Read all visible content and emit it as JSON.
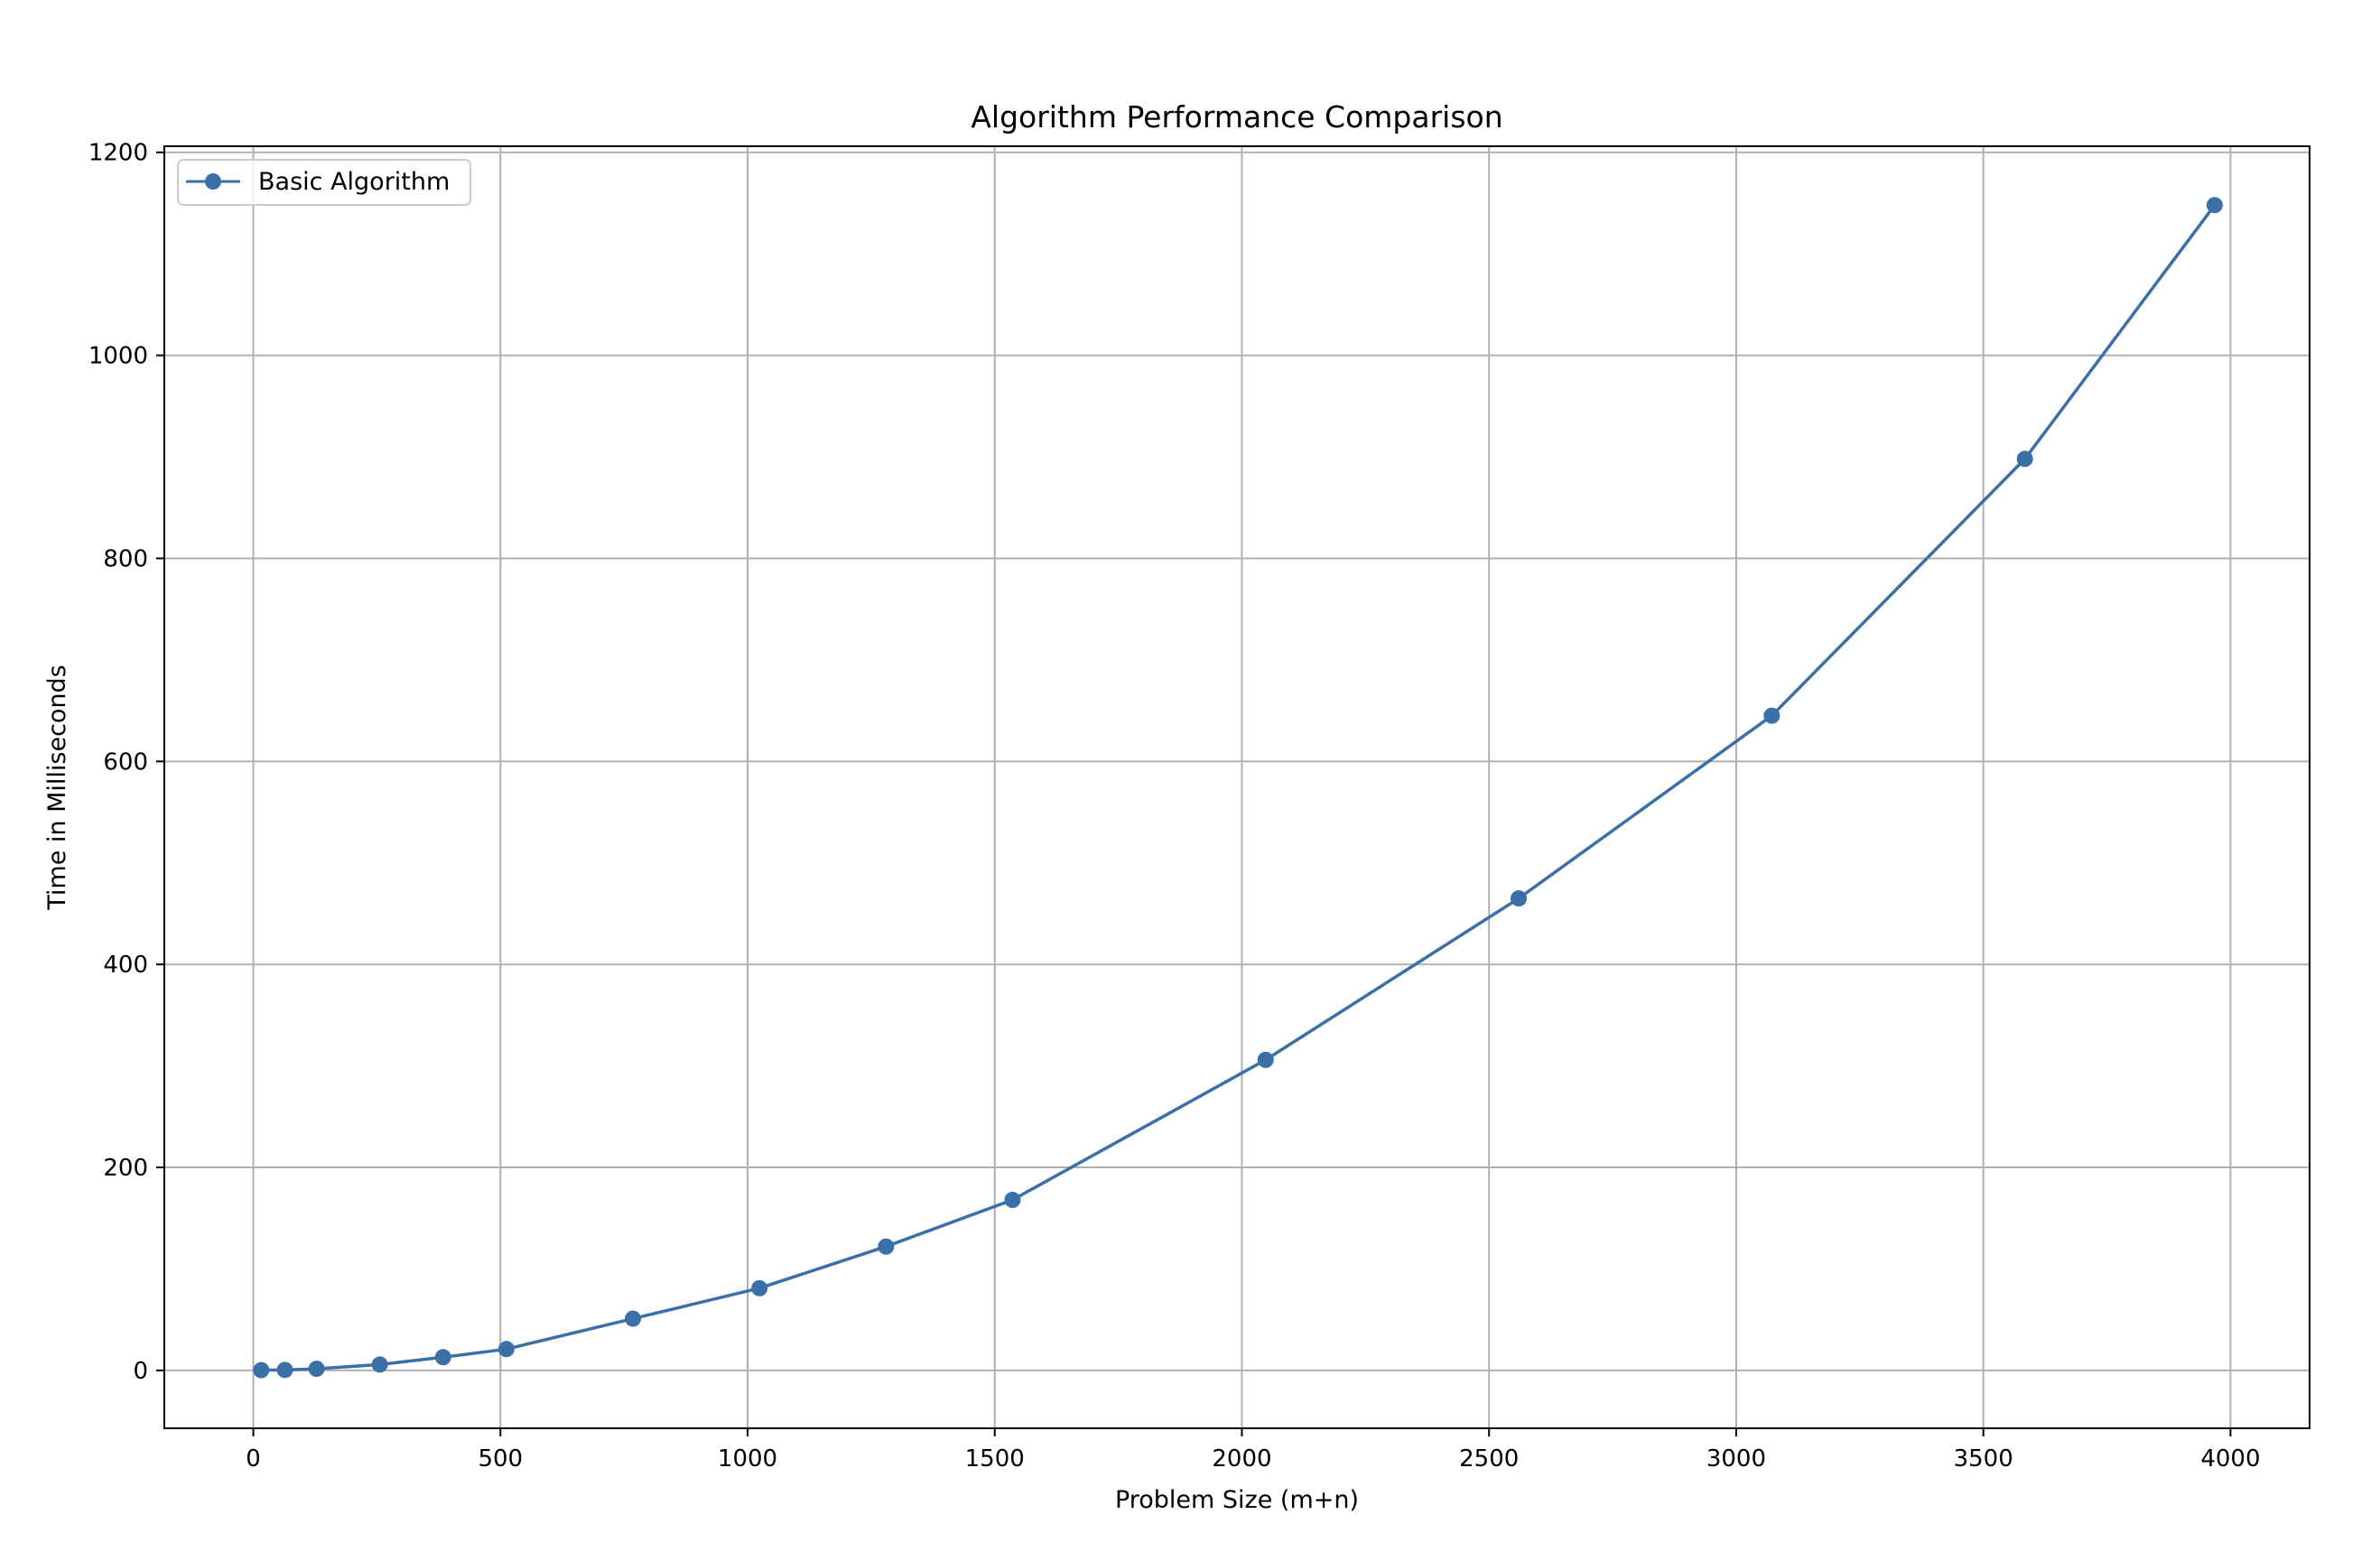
{
  "chart_data": {
    "type": "line",
    "title": "Algorithm Performance Comparison",
    "xlabel": "Problem Size (m+n)",
    "ylabel": "Time in Milliseconds",
    "xlim": [
      -180,
      4160
    ],
    "ylim": [
      -57,
      1206
    ],
    "xticks": [
      0,
      500,
      1000,
      1500,
      2000,
      2500,
      3000,
      3500,
      4000
    ],
    "yticks": [
      0,
      200,
      400,
      600,
      800,
      1000,
      1200
    ],
    "grid": true,
    "legend_position": "top-left",
    "series": [
      {
        "name": "Basic Algorithm",
        "color": "#3a6fa8",
        "marker": "circle",
        "x": [
          16,
          64,
          128,
          256,
          384,
          512,
          768,
          1024,
          1280,
          1536,
          2048,
          2560,
          3072,
          3584,
          3968
        ],
        "y": [
          0.3,
          0.5,
          1.6,
          5.8,
          13,
          21,
          51,
          81,
          122,
          168,
          306,
          465,
          645,
          898,
          1148
        ]
      }
    ]
  }
}
